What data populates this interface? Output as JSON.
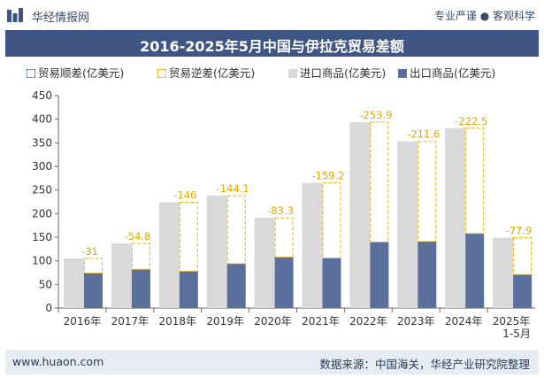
{
  "header": {
    "brand": "华经情报网",
    "tagline": "专业严谨 ● 客观科学"
  },
  "title": "2016-2025年5月中国与伊拉克贸易差额",
  "legend": {
    "surplus": "贸易顺差(亿美元)",
    "deficit": "贸易逆差(亿美元)",
    "import": "进口商品(亿美元)",
    "export": "出口商品(亿美元)"
  },
  "footer": {
    "left": "www.huaon.com",
    "right": "数据来源：中国海关，华经产业研究院整理"
  },
  "colors": {
    "import": "#d9d9d9",
    "export": "#5b6f9c",
    "deficit_border": "#f2b705",
    "deficit_label": "#e0a800",
    "title_bg": "#3f5584"
  },
  "chart_data": {
    "type": "bar",
    "categories": [
      "2016年",
      "2017年",
      "2018年",
      "2019年",
      "2020年",
      "2021年",
      "2022年",
      "2023年",
      "2024年",
      "2025年 1-5月"
    ],
    "series": [
      {
        "name": "进口商品(亿美元)",
        "values": [
          105,
          137,
          224,
          238,
          191,
          265,
          394,
          353,
          381,
          149
        ]
      },
      {
        "name": "出口商品(亿美元)",
        "values": [
          74,
          82,
          78,
          94,
          108,
          106,
          140,
          141,
          158,
          71
        ]
      },
      {
        "name": "贸易逆差(亿美元)",
        "values": [
          -31,
          -54.8,
          -146,
          -144.1,
          -83.3,
          -159.2,
          -253.9,
          -211.6,
          -222.5,
          -77.9
        ]
      }
    ],
    "ylim": [
      0,
      450
    ],
    "yticks": [
      0,
      50,
      100,
      150,
      200,
      250,
      300,
      350,
      400,
      450
    ],
    "legend_position": "top"
  }
}
